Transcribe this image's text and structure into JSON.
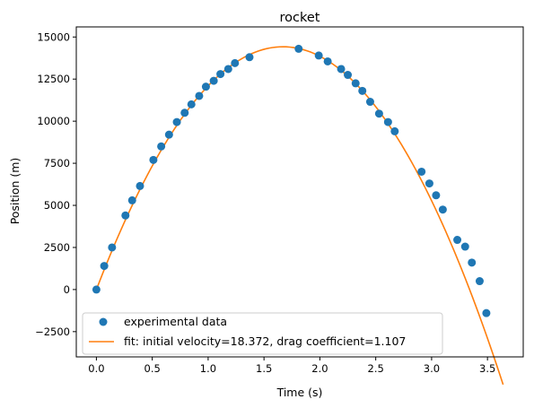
{
  "chart_data": {
    "type": "scatter",
    "title": "rocket",
    "xlabel": "Time (s)",
    "ylabel": "Position (m)",
    "xlim": [
      -0.18,
      3.82
    ],
    "ylim": [
      -4000,
      15600
    ],
    "xticks": [
      0.0,
      0.5,
      1.0,
      1.5,
      2.0,
      2.5,
      3.0,
      3.5
    ],
    "xtick_labels": [
      "0.0",
      "0.5",
      "1.0",
      "1.5",
      "2.0",
      "2.5",
      "3.0",
      "3.5"
    ],
    "yticks": [
      -2500,
      0,
      2500,
      5000,
      7500,
      10000,
      12500,
      15000
    ],
    "ytick_labels": [
      "−2500",
      "0",
      "2500",
      "5000",
      "7500",
      "10000",
      "12500",
      "15000"
    ],
    "grid": false,
    "legend_position": "lower-left",
    "series": [
      {
        "name": "experimental data",
        "kind": "scatter",
        "color": "#1f77b4",
        "points": [
          [
            0.0,
            0
          ],
          [
            0.07,
            1400
          ],
          [
            0.14,
            2500
          ],
          [
            0.26,
            4400
          ],
          [
            0.32,
            5300
          ],
          [
            0.39,
            6150
          ],
          [
            0.51,
            7700
          ],
          [
            0.58,
            8500
          ],
          [
            0.65,
            9200
          ],
          [
            0.72,
            9950
          ],
          [
            0.79,
            10500
          ],
          [
            0.85,
            11000
          ],
          [
            0.92,
            11500
          ],
          [
            0.98,
            12050
          ],
          [
            1.05,
            12400
          ],
          [
            1.11,
            12800
          ],
          [
            1.18,
            13100
          ],
          [
            1.24,
            13450
          ],
          [
            1.37,
            13800
          ],
          [
            1.81,
            14300
          ],
          [
            1.99,
            13900
          ],
          [
            2.07,
            13550
          ],
          [
            2.19,
            13100
          ],
          [
            2.25,
            12750
          ],
          [
            2.32,
            12250
          ],
          [
            2.38,
            11800
          ],
          [
            2.45,
            11150
          ],
          [
            2.53,
            10450
          ],
          [
            2.61,
            9950
          ],
          [
            2.67,
            9400
          ],
          [
            2.91,
            7000
          ],
          [
            2.98,
            6300
          ],
          [
            3.04,
            5600
          ],
          [
            3.1,
            4750
          ],
          [
            3.23,
            2950
          ],
          [
            3.3,
            2550
          ],
          [
            3.36,
            1600
          ],
          [
            3.43,
            500
          ],
          [
            3.49,
            -1400
          ]
        ]
      },
      {
        "name": "fit: initial velocity=18.372, drag coefficient=1.107",
        "kind": "line",
        "color": "#ff7f0e",
        "x_range": [
          0.0,
          3.64
        ],
        "fit_peak": [
          1.67,
          14420
        ]
      }
    ]
  }
}
